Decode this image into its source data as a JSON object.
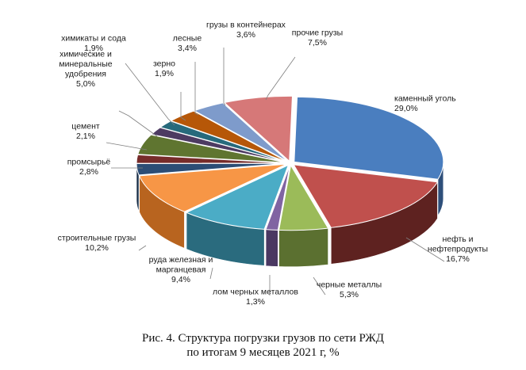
{
  "caption": {
    "line1": "Рис. 4. Структура погрузки грузов по сети РЖД",
    "line2": "по итогам 9 месяцев 2021 г, %"
  },
  "chart_data": {
    "type": "pie",
    "title": "",
    "three_d": true,
    "legend": "none",
    "slices": [
      {
        "label": [
          "каменный уголь"
        ],
        "value_label": "29,0%",
        "value": 29.0,
        "top": "#4a7ebf",
        "side": "#2e4f7a"
      },
      {
        "label": [
          "нефть и",
          "нефтепродукты"
        ],
        "value_label": "16,7%",
        "value": 16.7,
        "top": "#c0504d",
        "side": "#5e2220"
      },
      {
        "label": [
          "черные металлы"
        ],
        "value_label": "5,3%",
        "value": 5.3,
        "top": "#9bbb59",
        "side": "#5b7030"
      },
      {
        "label": [
          "лом черных металлов"
        ],
        "value_label": "1,3%",
        "value": 1.3,
        "top": "#8064a2",
        "side": "#4a3862"
      },
      {
        "label": [
          "руда железная и",
          "марганцевая"
        ],
        "value_label": "9,4%",
        "value": 9.4,
        "top": "#4bacc6",
        "side": "#2a6b7e"
      },
      {
        "label": [
          "строительные грузы"
        ],
        "value_label": "10,2%",
        "value": 10.2,
        "top": "#f79646",
        "side": "#b8641f"
      },
      {
        "label": [
          "промсырьё"
        ],
        "value_label": "2,8%",
        "value": 2.8,
        "top": "#2c4d75",
        "side": "#1b2f48"
      },
      {
        "label": [
          "цемент"
        ],
        "value_label": "2,1%",
        "value": 2.1,
        "top": "#772c2a",
        "side": "#4a1918"
      },
      {
        "label": [
          "химические и",
          "минеральные",
          "удобрения"
        ],
        "value_label": "5,0%",
        "value": 5.0,
        "top": "#5f7530",
        "side": "#3a4a1c"
      },
      {
        "label": [
          "химикаты и сода"
        ],
        "value_label": "1,9%",
        "value": 1.9,
        "top": "#4d3b62",
        "side": "#2e2340"
      },
      {
        "label": [
          "зерно"
        ],
        "value_label": "1,9%",
        "value": 1.9,
        "top": "#276a7c",
        "side": "#17424e"
      },
      {
        "label": [
          "лесные"
        ],
        "value_label": "3,4%",
        "value": 3.4,
        "top": "#b65708",
        "side": "#7a3a05"
      },
      {
        "label": [
          "грузы в контейнерах"
        ],
        "value_label": "3,6%",
        "value": 3.6,
        "top": "#7e9bcb",
        "side": "#506a94"
      },
      {
        "label": [
          "прочие грузы"
        ],
        "value_label": "7,5%",
        "value": 7.5,
        "top": "#d67878",
        "side": "#8c4444"
      }
    ]
  }
}
